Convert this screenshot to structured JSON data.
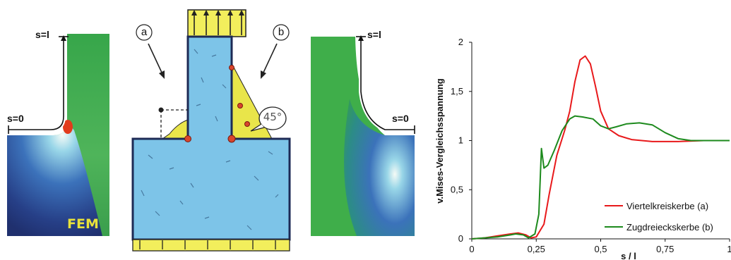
{
  "left_panel": {
    "label_top": "s=l",
    "label_start": "s=0",
    "label_fem": "FEM"
  },
  "sketch": {
    "label_a": "a",
    "label_b": "b",
    "angle": "45°"
  },
  "right_panel": {
    "label_top": "s=l",
    "label_start": "s=0"
  },
  "colors": {
    "series_a": "#e8191b",
    "series_b": "#1d8a1d",
    "field_green": "#3fae4a",
    "field_blue": "#1f3b8c",
    "block_blue": "#7dc4e8",
    "yellow": "#f2ee5c"
  },
  "chart_data": {
    "type": "line",
    "xlabel": "s / l",
    "ylabel": "v.Mises-Vergleichsspannung",
    "xlim": [
      0,
      1
    ],
    "ylim": [
      0,
      2
    ],
    "xticks": [
      "0",
      "0,25",
      "0,5",
      "0,75",
      "1"
    ],
    "yticks": [
      "0",
      "0,5",
      "1",
      "1,5",
      "2"
    ],
    "legend_position": "bottom-right",
    "series": [
      {
        "name": "Viertelkreiskerbe  (a)",
        "color": "#e8191b",
        "points": [
          [
            0,
            0
          ],
          [
            0.05,
            0.01
          ],
          [
            0.1,
            0.03
          ],
          [
            0.15,
            0.05
          ],
          [
            0.18,
            0.06
          ],
          [
            0.21,
            0.04
          ],
          [
            0.23,
            0.01
          ],
          [
            0.25,
            0.02
          ],
          [
            0.28,
            0.15
          ],
          [
            0.3,
            0.45
          ],
          [
            0.33,
            0.85
          ],
          [
            0.36,
            1.1
          ],
          [
            0.38,
            1.3
          ],
          [
            0.4,
            1.6
          ],
          [
            0.42,
            1.82
          ],
          [
            0.44,
            1.86
          ],
          [
            0.46,
            1.78
          ],
          [
            0.48,
            1.55
          ],
          [
            0.5,
            1.3
          ],
          [
            0.53,
            1.12
          ],
          [
            0.57,
            1.05
          ],
          [
            0.62,
            1.01
          ],
          [
            0.7,
            0.99
          ],
          [
            0.8,
            0.99
          ],
          [
            0.9,
            1
          ],
          [
            1,
            1
          ]
        ]
      },
      {
        "name": "Zugdreieckskerbe (b)",
        "color": "#1d8a1d",
        "points": [
          [
            0,
            0
          ],
          [
            0.05,
            0.01
          ],
          [
            0.1,
            0.02
          ],
          [
            0.15,
            0.04
          ],
          [
            0.17,
            0.05
          ],
          [
            0.2,
            0.04
          ],
          [
            0.22,
            0.01
          ],
          [
            0.245,
            0.05
          ],
          [
            0.26,
            0.25
          ],
          [
            0.27,
            0.92
          ],
          [
            0.28,
            0.72
          ],
          [
            0.295,
            0.75
          ],
          [
            0.32,
            0.9
          ],
          [
            0.35,
            1.1
          ],
          [
            0.38,
            1.22
          ],
          [
            0.4,
            1.25
          ],
          [
            0.43,
            1.24
          ],
          [
            0.47,
            1.22
          ],
          [
            0.5,
            1.15
          ],
          [
            0.53,
            1.12
          ],
          [
            0.56,
            1.14
          ],
          [
            0.6,
            1.17
          ],
          [
            0.65,
            1.18
          ],
          [
            0.7,
            1.16
          ],
          [
            0.75,
            1.08
          ],
          [
            0.8,
            1.02
          ],
          [
            0.85,
            1
          ],
          [
            1,
            1
          ]
        ]
      }
    ]
  }
}
